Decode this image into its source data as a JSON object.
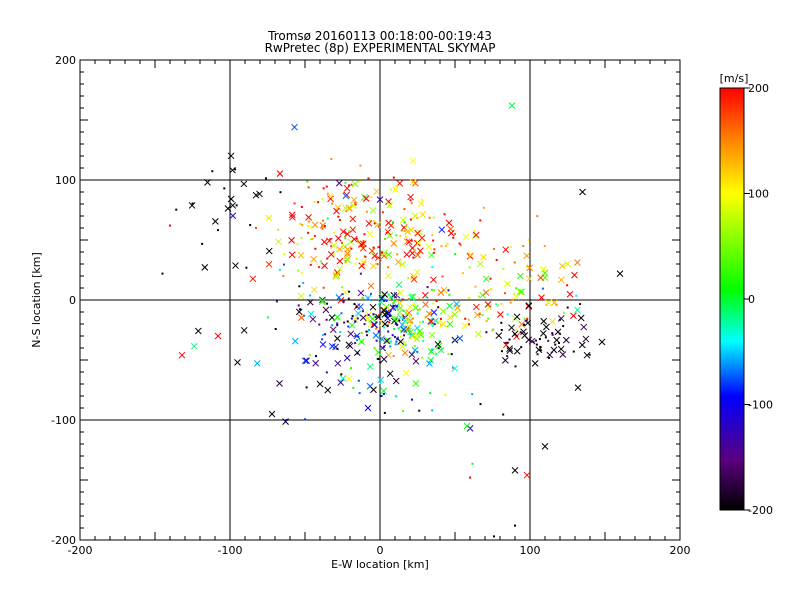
{
  "chart_data": {
    "type": "scatter",
    "title": "Tromsø 20160113 00:18:00-00:19:43",
    "subtitle": "RwPretec (8p) EXPERIMENTAL SKYMAP",
    "xlabel": "E-W location [km]",
    "ylabel": "N-S location [km]",
    "xlim": [
      -200,
      200
    ],
    "ylim": [
      -200,
      200
    ],
    "xticks": [
      -200,
      -100,
      0,
      100,
      200
    ],
    "yticks": [
      -200,
      -100,
      0,
      100,
      200
    ],
    "grid": true,
    "markers": [
      "x",
      "dot"
    ],
    "colorbar": {
      "label": "[m/s]",
      "range": [
        -200,
        200
      ],
      "ticks": [
        200,
        100,
        0,
        -100,
        -200
      ],
      "colors": [
        "#000000",
        "#5a0080",
        "#0000ff",
        "#00ffff",
        "#00ff00",
        "#ffff00",
        "#ff8000",
        "#ff0000"
      ]
    },
    "clusters": [
      {
        "x": -20,
        "y": 45,
        "sx": 25,
        "sy": 22,
        "n": 170,
        "v": 150,
        "vs": 70
      },
      {
        "x": 40,
        "y": 50,
        "sx": 20,
        "sy": 18,
        "n": 60,
        "v": 150,
        "vs": 70
      },
      {
        "x": 15,
        "y": -18,
        "sx": 15,
        "sy": 15,
        "n": 160,
        "v": 0,
        "vs": 100
      },
      {
        "x": -18,
        "y": -18,
        "sx": 18,
        "sy": 15,
        "n": 90,
        "v": -150,
        "vs": 70
      },
      {
        "x": 60,
        "y": -10,
        "sx": 30,
        "sy": 18,
        "n": 80,
        "v": 110,
        "vs": 100
      },
      {
        "x": 110,
        "y": -32,
        "sx": 18,
        "sy": 12,
        "n": 65,
        "v": -190,
        "vs": 20
      },
      {
        "x": -20,
        "y": 90,
        "sx": 25,
        "sy": 10,
        "n": 35,
        "v": 120,
        "vs": 120
      },
      {
        "x": -100,
        "y": 70,
        "sx": 15,
        "sy": 25,
        "n": 25,
        "v": -200,
        "vs": 0
      },
      {
        "x": 100,
        "y": 20,
        "sx": 20,
        "sy": 20,
        "n": 35,
        "v": 130,
        "vs": 80
      },
      {
        "x": 10,
        "y": -70,
        "sx": 30,
        "sy": 20,
        "n": 45,
        "v": -80,
        "vs": 100
      },
      {
        "x": -60,
        "y": -30,
        "sx": 30,
        "sy": 30,
        "n": 30,
        "v": -120,
        "vs": 100
      }
    ],
    "outliers": [
      {
        "x": 88,
        "y": 162,
        "v": -10,
        "m": "x"
      },
      {
        "x": -57,
        "y": 144,
        "v": -80,
        "m": "x"
      },
      {
        "x": 160,
        "y": 22,
        "v": -200,
        "m": "x"
      },
      {
        "x": 135,
        "y": 90,
        "v": -200,
        "m": "x"
      },
      {
        "x": -140,
        "y": 62,
        "v": 200,
        "m": "dot"
      },
      {
        "x": -145,
        "y": 22,
        "v": -200,
        "m": "dot"
      },
      {
        "x": -132,
        "y": -46,
        "v": 200,
        "m": "x"
      },
      {
        "x": -108,
        "y": -30,
        "v": 200,
        "m": "x"
      },
      {
        "x": -72,
        "y": -95,
        "v": -200,
        "m": "x"
      },
      {
        "x": -40,
        "y": -70,
        "v": -200,
        "m": "x"
      },
      {
        "x": -8,
        "y": -90,
        "v": -100,
        "m": "x"
      },
      {
        "x": 58,
        "y": -105,
        "v": 0,
        "m": "x"
      },
      {
        "x": 90,
        "y": -142,
        "v": -200,
        "m": "x"
      },
      {
        "x": 98,
        "y": -146,
        "v": 200,
        "m": "x"
      },
      {
        "x": 110,
        "y": -122,
        "v": -200,
        "m": "x"
      },
      {
        "x": 60,
        "y": -148,
        "v": 200,
        "m": "dot"
      },
      {
        "x": 132,
        "y": -73,
        "v": -200,
        "m": "x"
      },
      {
        "x": 148,
        "y": -35,
        "v": -200,
        "m": "x"
      },
      {
        "x": 138,
        "y": -46,
        "v": -200,
        "m": "x"
      },
      {
        "x": 22,
        "y": 116,
        "v": 100,
        "m": "x"
      },
      {
        "x": -115,
        "y": 98,
        "v": -200,
        "m": "x"
      },
      {
        "x": -95,
        "y": -52,
        "v": -200,
        "m": "x"
      },
      {
        "x": 125,
        "y": 30,
        "v": 80,
        "m": "x"
      },
      {
        "x": 90,
        "y": -188,
        "v": -200,
        "m": "dot"
      },
      {
        "x": 76,
        "y": -197,
        "v": -200,
        "m": "dot"
      }
    ]
  }
}
